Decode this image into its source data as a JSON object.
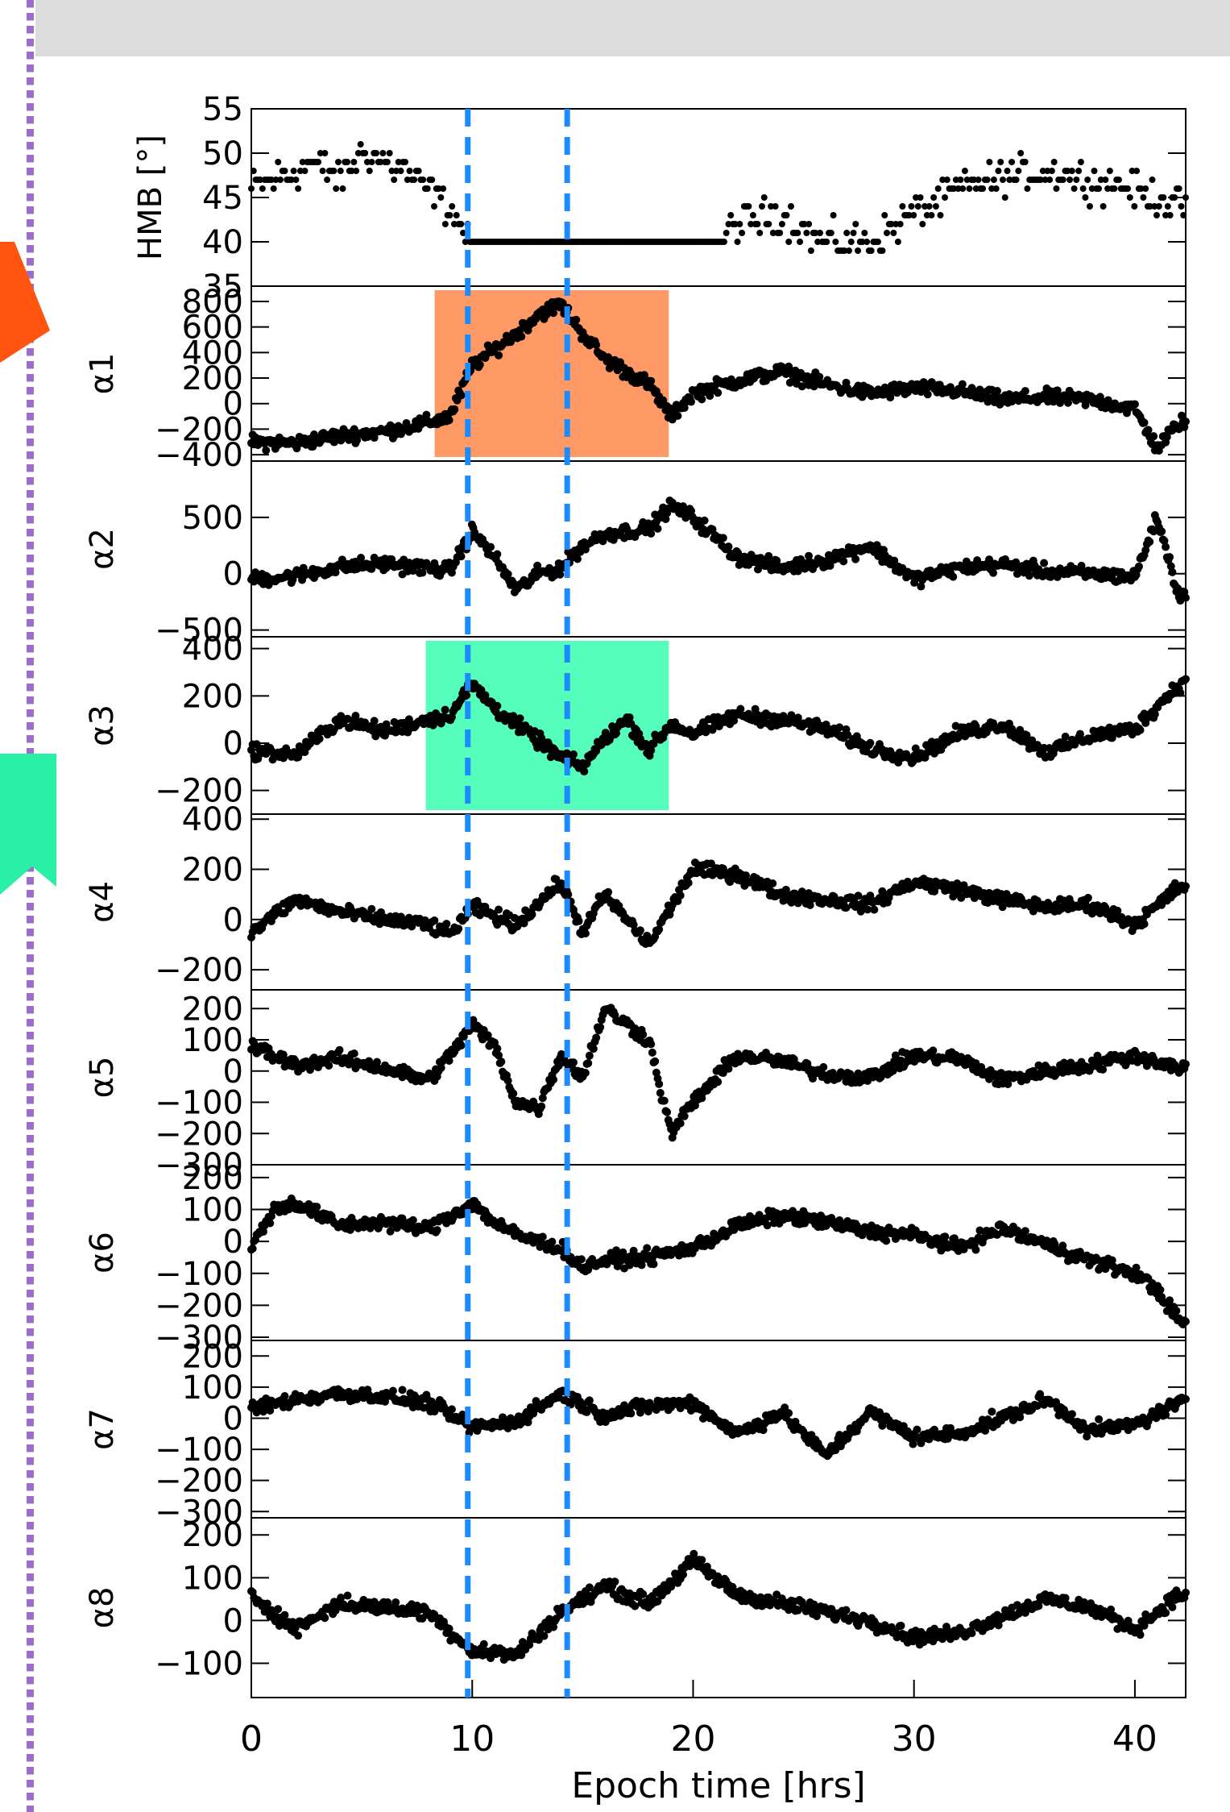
{
  "colors": {
    "banner": "#dcdcdc",
    "dotted_border": "#9b6fc9",
    "dashed_lines": "#1a8cff",
    "highlight_orange": "#ff9966",
    "highlight_green": "#55ffbb",
    "marker_orange": "#ff5511",
    "marker_green": "#2af0a5",
    "points": "#000000"
  },
  "chart_data": {
    "type": "scatter",
    "xlabel": "Epoch time [hrs]",
    "xlim": [
      0,
      42.3
    ],
    "xticks": [
      "0",
      "10",
      "20",
      "30",
      "40"
    ],
    "xtick_values": [
      0,
      10,
      20,
      30,
      40
    ],
    "vlines": [
      9.8,
      14.3
    ],
    "panels": [
      {
        "name": "HMB [°]",
        "ylim": [
          35,
          55
        ],
        "ticks": [
          35,
          40,
          45,
          50,
          55
        ],
        "tick_labels": [
          "35",
          "40",
          "45",
          "50",
          "55"
        ]
      },
      {
        "name": "α1",
        "ylim": [
          -450,
          920
        ],
        "ticks": [
          -400,
          -200,
          0,
          200,
          400,
          600,
          800
        ],
        "tick_labels": [
          "−400",
          "−200",
          "0",
          "200",
          "400",
          "600",
          "800"
        ],
        "highlight": {
          "x": [
            8.3,
            18.9
          ],
          "color": "orange"
        }
      },
      {
        "name": "α2",
        "ylim": [
          -560,
          1000
        ],
        "ticks": [
          -500,
          0,
          500
        ],
        "tick_labels": [
          "−500",
          "0",
          "500"
        ]
      },
      {
        "name": "α3",
        "ylim": [
          -300,
          450
        ],
        "ticks": [
          -200,
          0,
          200,
          400
        ],
        "tick_labels": [
          "−200",
          "0",
          "200",
          "400"
        ],
        "highlight": {
          "x": [
            7.9,
            18.9
          ],
          "color": "green"
        }
      },
      {
        "name": "α4",
        "ylim": [
          -280,
          420
        ],
        "ticks": [
          -200,
          0,
          200,
          400
        ],
        "tick_labels": [
          "−200",
          "0",
          "200",
          "400"
        ]
      },
      {
        "name": "α5",
        "ylim": [
          -300,
          260
        ],
        "ticks": [
          -300,
          -200,
          -100,
          0,
          100,
          200
        ],
        "tick_labels": [
          "−300",
          "−200",
          "−100",
          "0",
          "100",
          "200"
        ]
      },
      {
        "name": "α6",
        "ylim": [
          -310,
          240
        ],
        "ticks": [
          -300,
          -200,
          -100,
          0,
          100,
          200
        ],
        "tick_labels": [
          "−300",
          "−200",
          "−100",
          "0",
          "100",
          "200"
        ]
      },
      {
        "name": "α7",
        "ylim": [
          -320,
          250
        ],
        "ticks": [
          -300,
          -200,
          -100,
          0,
          100,
          200
        ],
        "tick_labels": [
          "−300",
          "−200",
          "−100",
          "0",
          "100",
          "200"
        ]
      },
      {
        "name": "α8",
        "ylim": [
          -180,
          240
        ],
        "ticks": [
          -100,
          0,
          100,
          200
        ],
        "tick_labels": [
          "−100",
          "0",
          "100",
          "200"
        ]
      }
    ],
    "series": [
      {
        "panel": 0,
        "x": [
          0,
          1,
          2,
          3,
          4,
          5,
          6,
          7,
          8,
          9,
          9.8,
          14.3,
          20,
          22,
          24,
          26,
          28,
          30,
          32,
          34,
          36,
          38,
          40,
          42
        ],
        "y": [
          46,
          47,
          48,
          49,
          47,
          50,
          49,
          48,
          46,
          44,
          40,
          40,
          40,
          42,
          43,
          40,
          40,
          43,
          46,
          47,
          48,
          47,
          46,
          44
        ]
      },
      {
        "panel": 1,
        "x": [
          0,
          2,
          4,
          6,
          8,
          9,
          10,
          12,
          13,
          14,
          15,
          16,
          18,
          19,
          20,
          22,
          24,
          26,
          28,
          30,
          32,
          34,
          36,
          38,
          40,
          41,
          42
        ],
        "y": [
          -300,
          -310,
          -250,
          -220,
          -150,
          -100,
          300,
          550,
          700,
          780,
          550,
          350,
          150,
          -100,
          80,
          180,
          250,
          150,
          80,
          120,
          100,
          30,
          50,
          30,
          -40,
          -350,
          -150
        ]
      },
      {
        "panel": 2,
        "x": [
          0,
          2,
          4,
          6,
          8,
          9,
          10,
          11,
          12,
          13,
          14,
          15,
          16,
          18,
          19,
          20,
          22,
          24,
          26,
          28,
          30,
          32,
          34,
          36,
          38,
          40,
          41,
          42
        ],
        "y": [
          -50,
          -20,
          60,
          90,
          50,
          30,
          380,
          150,
          -150,
          0,
          50,
          250,
          350,
          400,
          600,
          500,
          150,
          50,
          120,
          250,
          -50,
          50,
          80,
          20,
          0,
          -30,
          500,
          -200
        ]
      },
      {
        "panel": 3,
        "x": [
          0,
          2,
          4,
          6,
          8,
          9,
          10,
          11,
          12,
          14,
          15,
          16,
          17,
          18,
          19,
          20,
          22,
          24,
          26,
          28,
          30,
          32,
          34,
          36,
          38,
          40,
          42
        ],
        "y": [
          -30,
          -50,
          100,
          50,
          100,
          120,
          250,
          150,
          80,
          -60,
          -100,
          20,
          100,
          -30,
          80,
          40,
          120,
          100,
          60,
          -20,
          -60,
          40,
          80,
          -40,
          30,
          60,
          250
        ]
      },
      {
        "panel": 4,
        "x": [
          0,
          2,
          4,
          6,
          8,
          9,
          10,
          12,
          14,
          15,
          16,
          18,
          20,
          22,
          24,
          26,
          28,
          30,
          32,
          34,
          36,
          38,
          40,
          42
        ],
        "y": [
          -50,
          80,
          30,
          0,
          -20,
          -60,
          50,
          -20,
          150,
          -50,
          100,
          -100,
          200,
          180,
          100,
          80,
          60,
          150,
          120,
          80,
          50,
          60,
          -20,
          130
        ]
      },
      {
        "panel": 5,
        "x": [
          0,
          2,
          4,
          6,
          8,
          9,
          10,
          11,
          12,
          13,
          14,
          15,
          16,
          17,
          18,
          19,
          20,
          22,
          24,
          26,
          28,
          30,
          32,
          34,
          36,
          38,
          40,
          42
        ],
        "y": [
          80,
          20,
          40,
          10,
          -30,
          50,
          150,
          80,
          -100,
          -120,
          50,
          -20,
          200,
          150,
          100,
          -200,
          -100,
          50,
          30,
          -10,
          -20,
          50,
          40,
          -30,
          0,
          20,
          50,
          10
        ]
      },
      {
        "panel": 6,
        "x": [
          0,
          1,
          2,
          4,
          6,
          8,
          10,
          11,
          12,
          14,
          15,
          16,
          18,
          20,
          22,
          24,
          26,
          28,
          30,
          32,
          34,
          36,
          38,
          40,
          41,
          42
        ],
        "y": [
          -20,
          100,
          120,
          50,
          60,
          40,
          120,
          60,
          20,
          -20,
          -80,
          -60,
          -50,
          -20,
          50,
          80,
          60,
          30,
          20,
          -20,
          40,
          -10,
          -60,
          -100,
          -150,
          -250
        ]
      },
      {
        "panel": 7,
        "x": [
          0,
          2,
          4,
          6,
          8,
          10,
          12,
          14,
          16,
          18,
          20,
          22,
          24,
          26,
          28,
          30,
          32,
          34,
          36,
          38,
          40,
          42
        ],
        "y": [
          30,
          60,
          80,
          70,
          50,
          -30,
          -10,
          80,
          10,
          40,
          50,
          -50,
          20,
          -120,
          20,
          -60,
          -50,
          0,
          60,
          -40,
          -20,
          50
        ]
      },
      {
        "panel": 8,
        "x": [
          0,
          2,
          4,
          6,
          8,
          10,
          12,
          14,
          16,
          18,
          20,
          22,
          24,
          26,
          28,
          30,
          32,
          34,
          36,
          38,
          40,
          42
        ],
        "y": [
          60,
          -20,
          40,
          30,
          20,
          -70,
          -80,
          20,
          80,
          40,
          140,
          60,
          40,
          20,
          0,
          -40,
          -30,
          10,
          50,
          30,
          -20,
          60
        ]
      }
    ]
  }
}
